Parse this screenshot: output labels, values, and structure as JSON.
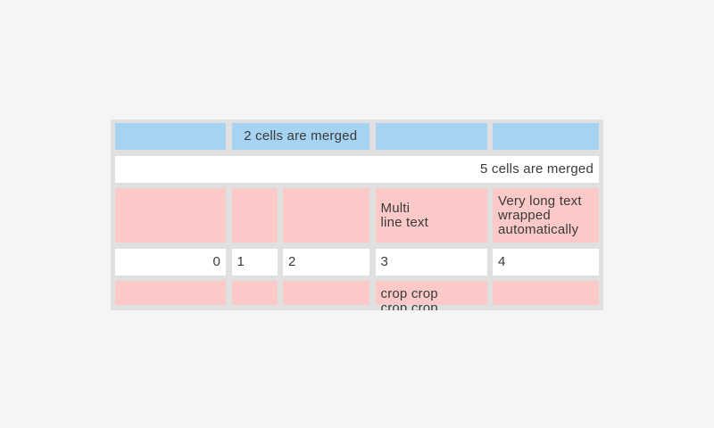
{
  "theme": {
    "page_bg": "#f5f5f5",
    "table_bg": "#e0e0e0",
    "cell_blue": "#a7d3f2",
    "cell_pink": "#fbc9c7",
    "cell_white": "#ffffff",
    "text_color": "#3a3a3a"
  },
  "table": {
    "columns": 5,
    "row1": {
      "merged_label": "2 cells are merged"
    },
    "row2": {
      "label": "5 cells are merged"
    },
    "row3": {
      "multiline_label": "Multi\nline text",
      "wrapped_label": "Very long text\nwrapped\nautomatically"
    },
    "row4": {
      "values": [
        "0",
        "1",
        "2",
        "3",
        "4"
      ]
    },
    "row5": {
      "cropped_label": "crop crop\ncrop crop"
    }
  }
}
